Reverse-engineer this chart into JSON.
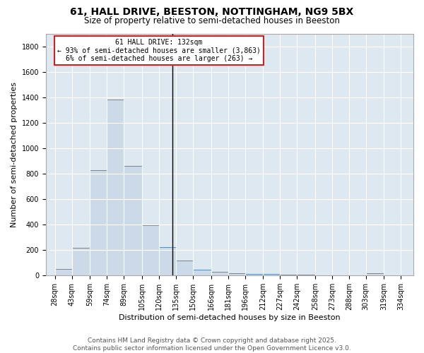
{
  "title1": "61, HALL DRIVE, BEESTON, NOTTINGHAM, NG9 5BX",
  "title2": "Size of property relative to semi-detached houses in Beeston",
  "xlabel": "Distribution of semi-detached houses by size in Beeston",
  "ylabel": "Number of semi-detached properties",
  "footer1": "Contains HM Land Registry data © Crown copyright and database right 2025.",
  "footer2": "Contains public sector information licensed under the Open Government Licence v3.0.",
  "annotation_title": "61 HALL DRIVE: 132sqm",
  "annotation_line1": "← 93% of semi-detached houses are smaller (3,863)",
  "annotation_line2": "6% of semi-detached houses are larger (263) →",
  "property_size": 132,
  "bar_left_edges": [
    28,
    43,
    59,
    74,
    89,
    105,
    120,
    135,
    150,
    166,
    181,
    196,
    212,
    227,
    242,
    258,
    273,
    288,
    303,
    319
  ],
  "bar_heights": [
    50,
    220,
    830,
    1380,
    860,
    395,
    225,
    120,
    45,
    30,
    20,
    15,
    10,
    8,
    5,
    3,
    0,
    0,
    20,
    0
  ],
  "bar_widths": [
    15,
    16,
    15,
    15,
    16,
    15,
    15,
    15,
    16,
    15,
    15,
    16,
    15,
    15,
    16,
    15,
    15,
    15,
    16,
    15
  ],
  "tick_labels": [
    "28sqm",
    "43sqm",
    "59sqm",
    "74sqm",
    "89sqm",
    "105sqm",
    "120sqm",
    "135sqm",
    "150sqm",
    "166sqm",
    "181sqm",
    "196sqm",
    "212sqm",
    "227sqm",
    "242sqm",
    "258sqm",
    "273sqm",
    "288sqm",
    "303sqm",
    "319sqm",
    "334sqm"
  ],
  "tick_positions": [
    28,
    43,
    59,
    74,
    89,
    105,
    120,
    135,
    150,
    166,
    181,
    196,
    212,
    227,
    242,
    258,
    273,
    288,
    303,
    319,
    334
  ],
  "bar_color": "#ccd9e8",
  "bar_edge_color": "#5b8db8",
  "vline_color": "#000000",
  "annotation_box_color": "#ffffff",
  "annotation_box_edge_color": "#cc2222",
  "fig_bg_color": "#ffffff",
  "plot_bg_color": "#dde8f0",
  "ylim": [
    0,
    1900
  ],
  "xlim": [
    20,
    345
  ],
  "title_fontsize": 10,
  "subtitle_fontsize": 8.5,
  "axis_label_fontsize": 8,
  "tick_fontsize": 7,
  "annotation_fontsize": 7,
  "footer_fontsize": 6.5
}
